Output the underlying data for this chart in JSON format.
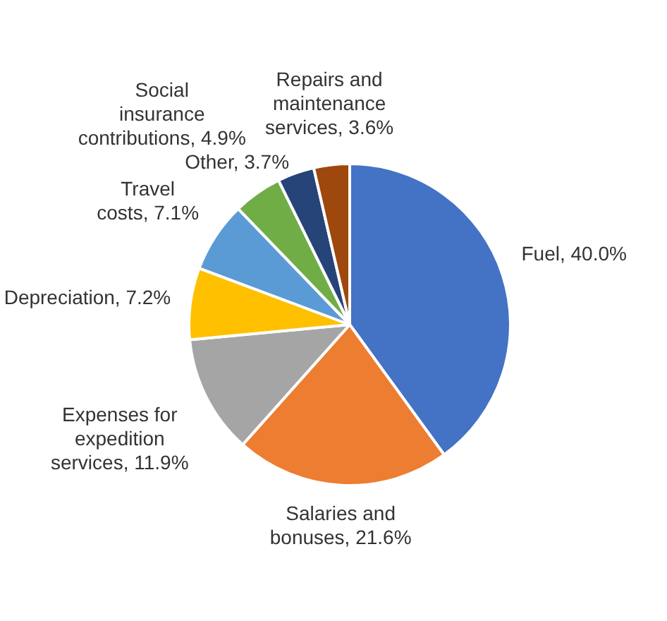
{
  "chart_data": {
    "type": "pie",
    "categories": [
      "Fuel",
      "Salaries and bonuses",
      "Expenses for expedition services",
      "Depreciation",
      "Travel costs",
      "Social insurance contributions",
      "Other",
      "Repairs and maintenance services"
    ],
    "values": [
      40.0,
      21.6,
      11.9,
      7.2,
      7.1,
      4.9,
      3.7,
      3.6
    ],
    "value_labels": [
      "40.0%",
      "21.6%",
      "11.9%",
      "7.2%",
      "7.1%",
      "4.9%",
      "3.7%",
      "3.6%"
    ],
    "colors": [
      "#4472c4",
      "#ed7d31",
      "#a5a5a5",
      "#ffc000",
      "#5b9bd5",
      "#70ad47",
      "#264478",
      "#9e480e"
    ],
    "legend": false
  }
}
